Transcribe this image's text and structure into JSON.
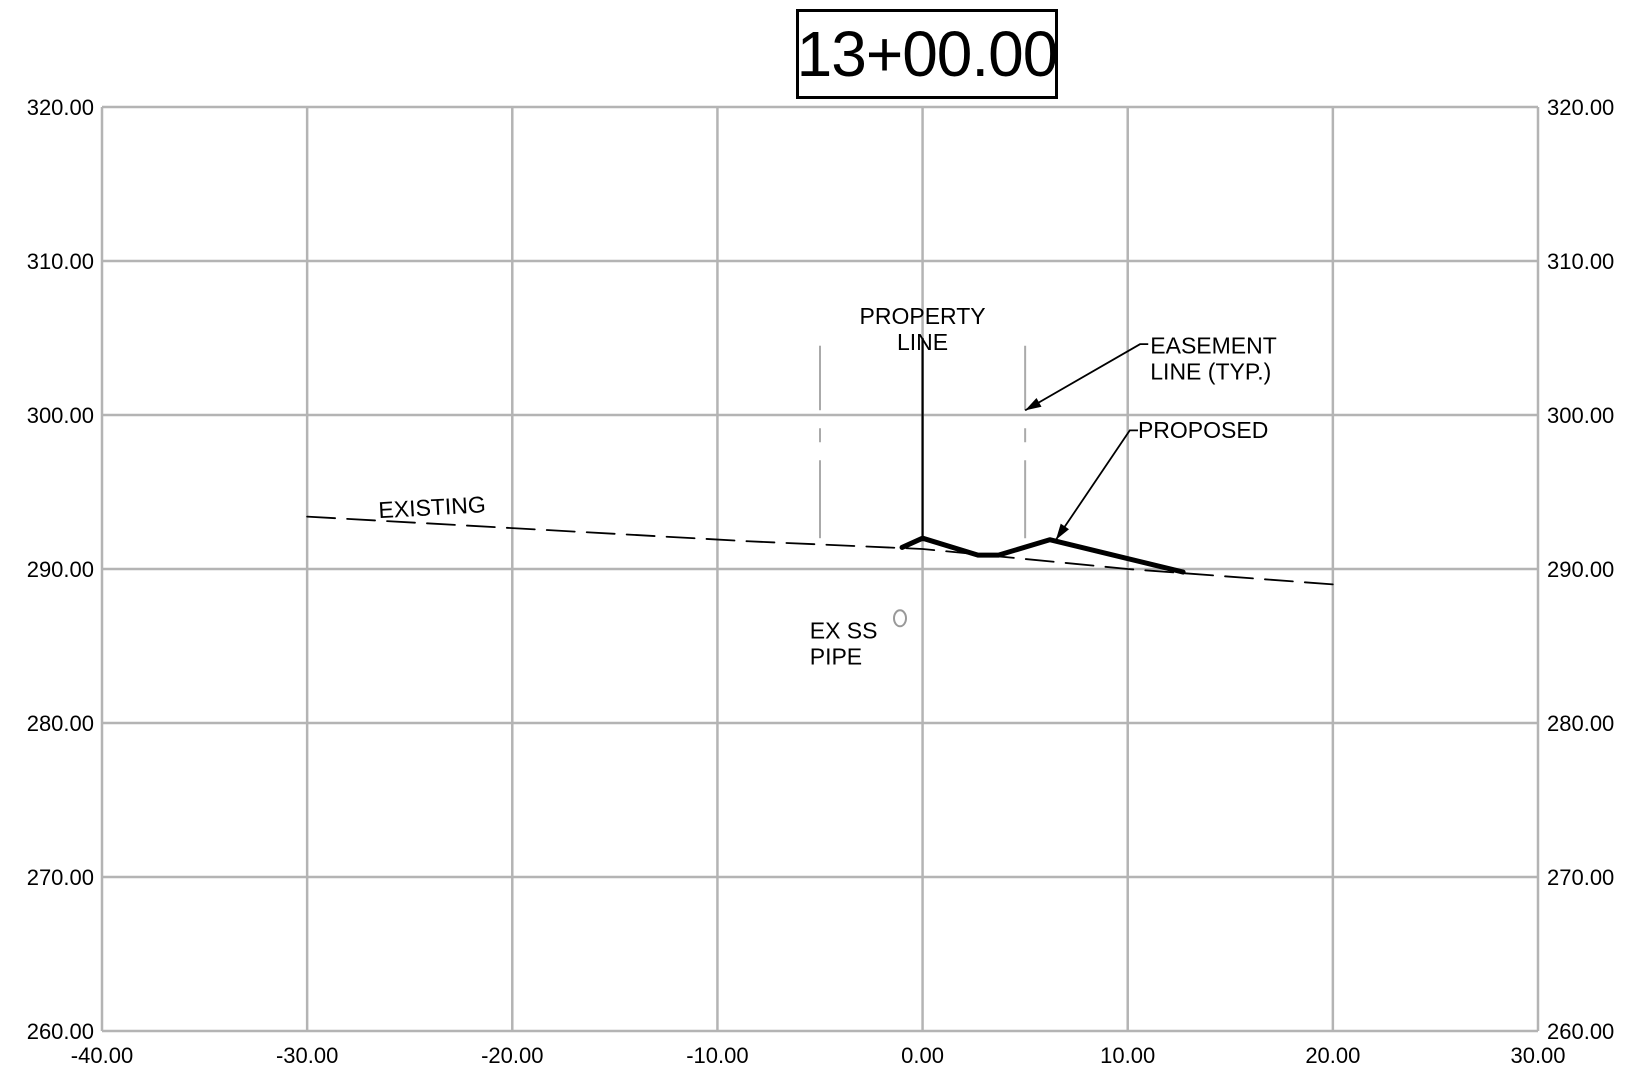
{
  "chart_data": {
    "type": "line",
    "title": "13+00.00",
    "xlabel": "",
    "ylabel": "",
    "xlim": [
      -40,
      30
    ],
    "ylim": [
      260,
      320
    ],
    "grid": true,
    "x_ticks": [
      "-40.00",
      "-30.00",
      "-20.00",
      "-10.00",
      "0.00",
      "10.00",
      "20.00",
      "30.00"
    ],
    "y_ticks": [
      "320.00",
      "310.00",
      "300.00",
      "290.00",
      "280.00",
      "270.00",
      "260.00"
    ],
    "series": [
      {
        "name": "EXISTING",
        "style": "dashed",
        "color": "#000000",
        "points": [
          [
            -30,
            293.4
          ],
          [
            -8.5,
            291.8
          ],
          [
            0,
            291.3
          ],
          [
            10,
            290.0
          ],
          [
            20,
            289.0
          ]
        ]
      },
      {
        "name": "PROPOSED",
        "style": "solid-heavy",
        "color": "#000000",
        "points": [
          [
            -1,
            291.4
          ],
          [
            0,
            292.0
          ],
          [
            2.7,
            290.9
          ],
          [
            3.7,
            290.9
          ],
          [
            6.2,
            291.9
          ],
          [
            12.7,
            289.8
          ]
        ]
      }
    ],
    "vertical_lines": [
      {
        "name": "PROPERTY LINE",
        "x": 0,
        "y_from": 291.8,
        "y_to": 305.0,
        "color": "#000000",
        "style": "solid"
      },
      {
        "name": "EASEMENT LINE (TYP.) left",
        "x": -5,
        "y_from": 292.0,
        "y_to": 304.5,
        "color": "#aaaaaa",
        "style": "dash-dot"
      },
      {
        "name": "EASEMENT LINE (TYP.) right",
        "x": 5,
        "y_from": 292.0,
        "y_to": 304.5,
        "color": "#aaaaaa",
        "style": "dash-dot"
      }
    ],
    "features": [
      {
        "name": "EX SS PIPE",
        "x": -1.1,
        "y": 286.8,
        "shape": "small-circle",
        "color": "#999999"
      }
    ],
    "annotations": [
      {
        "id": "property",
        "lines": [
          "PROPERTY",
          "LINE"
        ],
        "x": 0,
        "y": 305.9,
        "align": "middle"
      },
      {
        "id": "easement",
        "lines": [
          "EASEMENT",
          "LINE (TYP.)"
        ],
        "x": 11.1,
        "y": 304.0,
        "align": "start",
        "leader_from": [
          11.0,
          304.6
        ],
        "leader_mid": [
          10.6,
          304.6
        ],
        "leader_to": [
          5.0,
          300.3
        ]
      },
      {
        "id": "proposed",
        "lines": [
          "PROPOSED"
        ],
        "x": 10.5,
        "y": 298.5,
        "align": "start",
        "leader_from": [
          10.5,
          299.0
        ],
        "leader_mid": [
          10.1,
          299.0
        ],
        "leader_to": [
          6.5,
          291.9
        ]
      },
      {
        "id": "existing",
        "lines": [
          "EXISTING"
        ],
        "x": -26.5,
        "y": 293.3,
        "align": "start",
        "rotate": -3.2
      },
      {
        "id": "exss",
        "lines": [
          "EX SS",
          "PIPE"
        ],
        "x": -5.5,
        "y": 285.5,
        "align": "start"
      }
    ]
  }
}
